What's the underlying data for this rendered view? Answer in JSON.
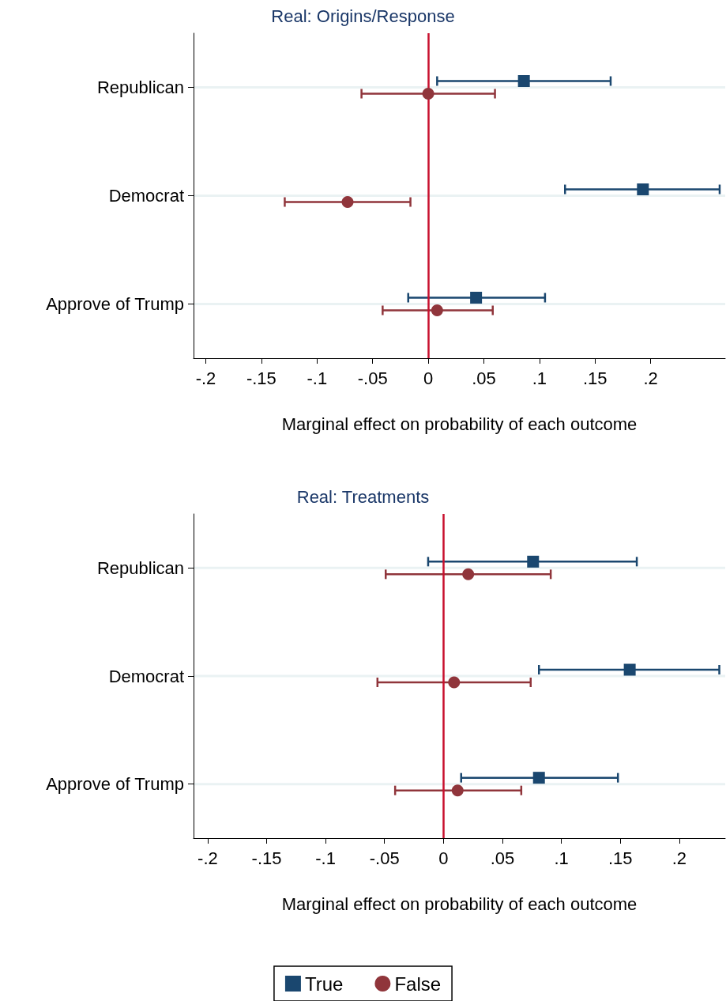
{
  "chart_data": [
    {
      "type": "scatter",
      "title": "Real: Origins/Response",
      "xlabel": "Marginal effect on probability of each outcome",
      "categories": [
        "Republican",
        "Democrat",
        "Approve of Trump"
      ],
      "orientation": "horizontal",
      "series": [
        {
          "color": "#1a476f",
          "marker": "square",
          "values": [
            0.086,
            0.193,
            0.043
          ],
          "errors": [
            [
              0.008,
              0.164
            ],
            [
              0.123,
              0.262
            ],
            [
              -0.018,
              0.105
            ]
          ]
        },
        {
          "color": "#90353b",
          "marker": "circle",
          "values": [
            0.0,
            -0.0725,
            0.008
          ],
          "errors": [
            [
              -0.06,
              0.06
            ],
            [
              -0.129,
              -0.016
            ],
            [
              -0.041,
              0.058
            ]
          ]
        }
      ],
      "xlim": [
        -0.211,
        0.267
      ],
      "xticks": [
        {
          "value": -0.2,
          "label": "-.2"
        },
        {
          "value": -0.15,
          "label": "-.15"
        },
        {
          "value": -0.1,
          "label": "-.1"
        },
        {
          "value": -0.05,
          "label": "-.05"
        },
        0,
        {
          "value": 0.05,
          "label": ".05"
        },
        {
          "value": 0.1,
          "label": ".1"
        },
        {
          "value": 0.15,
          "label": ".15"
        },
        {
          "value": 0.2,
          "label": ".2"
        }
      ],
      "ref_lines": [
        {
          "axis": "x",
          "value": 0,
          "color": "#c8102e"
        }
      ],
      "grid": "y"
    },
    {
      "type": "scatter",
      "title": "Real: Treatments",
      "xlabel": "Marginal effect on probability of each outcome",
      "categories": [
        "Republican",
        "Democrat",
        "Approve of Trump"
      ],
      "orientation": "horizontal",
      "series": [
        {
          "name": "True",
          "color": "#1a476f",
          "marker": "square",
          "values": [
            0.076,
            0.158,
            0.081
          ],
          "errors": [
            [
              -0.013,
              0.164
            ],
            [
              0.081,
              0.234
            ],
            [
              0.015,
              0.148
            ]
          ]
        },
        {
          "name": "False",
          "color": "#90353b",
          "marker": "circle",
          "values": [
            0.021,
            0.009,
            0.012
          ],
          "errors": [
            [
              -0.049,
              0.091
            ],
            [
              -0.056,
              0.074
            ],
            [
              -0.041,
              0.066
            ]
          ]
        }
      ],
      "xlim": [
        -0.212,
        0.239
      ],
      "xticks": [
        {
          "value": -0.2,
          "label": "-.2"
        },
        {
          "value": -0.15,
          "label": "-.15"
        },
        {
          "value": -0.1,
          "label": "-.1"
        },
        {
          "value": -0.05,
          "label": "-.05"
        },
        0,
        {
          "value": 0.05,
          "label": ".05"
        },
        {
          "value": 0.1,
          "label": ".1"
        },
        {
          "value": 0.15,
          "label": ".15"
        },
        {
          "value": 0.2,
          "label": ".2"
        }
      ],
      "ref_lines": [
        {
          "axis": "x",
          "value": 0,
          "color": "#c8102e"
        }
      ],
      "grid": "y",
      "legend": "bottom"
    }
  ]
}
